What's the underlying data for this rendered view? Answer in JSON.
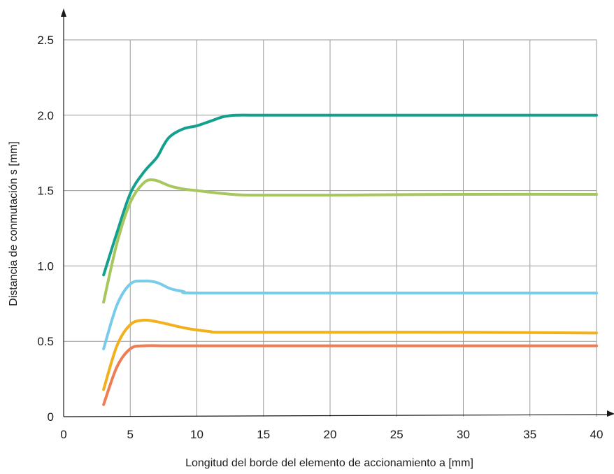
{
  "chart_data": {
    "type": "line",
    "title": "",
    "xlabel": "Longitud del borde del elemento de accionamiento a [mm]",
    "ylabel": "Distancia de conmutación s [mm]",
    "xlim": [
      0,
      40
    ],
    "ylim": [
      0,
      2.5
    ],
    "xticks": [
      0,
      5,
      10,
      15,
      20,
      25,
      30,
      35,
      40
    ],
    "yticks": [
      0,
      0.5,
      1.0,
      1.5,
      2.0,
      2.5
    ],
    "xtick_labels": [
      "0",
      "5",
      "10",
      "15",
      "20",
      "25",
      "30",
      "35",
      "40"
    ],
    "ytick_labels": [
      "0",
      "0.5",
      "1.0",
      "1.5",
      "2.0",
      "2.5"
    ],
    "grid": true,
    "legend": "none",
    "series": [
      {
        "color": "#14a08e",
        "points": [
          [
            3,
            0.94
          ],
          [
            4,
            1.22
          ],
          [
            5,
            1.48
          ],
          [
            6,
            1.62
          ],
          [
            7,
            1.72
          ],
          [
            7.5,
            1.8
          ],
          [
            8,
            1.86
          ],
          [
            9,
            1.91
          ],
          [
            10,
            1.93
          ],
          [
            11,
            1.96
          ],
          [
            12,
            1.99
          ],
          [
            13,
            2.0
          ],
          [
            15,
            2.0
          ],
          [
            20,
            2.0
          ],
          [
            25,
            2.0
          ],
          [
            30,
            2.0
          ],
          [
            35,
            2.0
          ],
          [
            40,
            2.0
          ]
        ]
      },
      {
        "color": "#a7c65c",
        "points": [
          [
            3,
            0.76
          ],
          [
            4,
            1.15
          ],
          [
            5,
            1.42
          ],
          [
            6,
            1.55
          ],
          [
            6.8,
            1.57
          ],
          [
            8,
            1.53
          ],
          [
            9,
            1.51
          ],
          [
            10,
            1.5
          ],
          [
            12,
            1.48
          ],
          [
            14,
            1.47
          ],
          [
            20,
            1.47
          ],
          [
            30,
            1.475
          ],
          [
            40,
            1.475
          ]
        ]
      },
      {
        "color": "#79cbea",
        "points": [
          [
            3,
            0.45
          ],
          [
            4,
            0.74
          ],
          [
            5,
            0.88
          ],
          [
            6,
            0.9
          ],
          [
            7,
            0.89
          ],
          [
            8,
            0.85
          ],
          [
            9,
            0.83
          ],
          [
            10,
            0.82
          ],
          [
            20,
            0.82
          ],
          [
            30,
            0.82
          ],
          [
            40,
            0.82
          ]
        ]
      },
      {
        "color": "#f2b01c",
        "points": [
          [
            3,
            0.18
          ],
          [
            4,
            0.47
          ],
          [
            5,
            0.61
          ],
          [
            6,
            0.64
          ],
          [
            7,
            0.63
          ],
          [
            8,
            0.61
          ],
          [
            9,
            0.59
          ],
          [
            10,
            0.575
          ],
          [
            11,
            0.565
          ],
          [
            12,
            0.56
          ],
          [
            20,
            0.56
          ],
          [
            30,
            0.56
          ],
          [
            40,
            0.555
          ]
        ]
      },
      {
        "color": "#ee7d54",
        "points": [
          [
            3,
            0.08
          ],
          [
            4,
            0.33
          ],
          [
            5,
            0.45
          ],
          [
            6,
            0.47
          ],
          [
            8,
            0.47
          ],
          [
            12,
            0.47
          ],
          [
            20,
            0.47
          ],
          [
            30,
            0.47
          ],
          [
            40,
            0.47
          ]
        ]
      }
    ]
  }
}
